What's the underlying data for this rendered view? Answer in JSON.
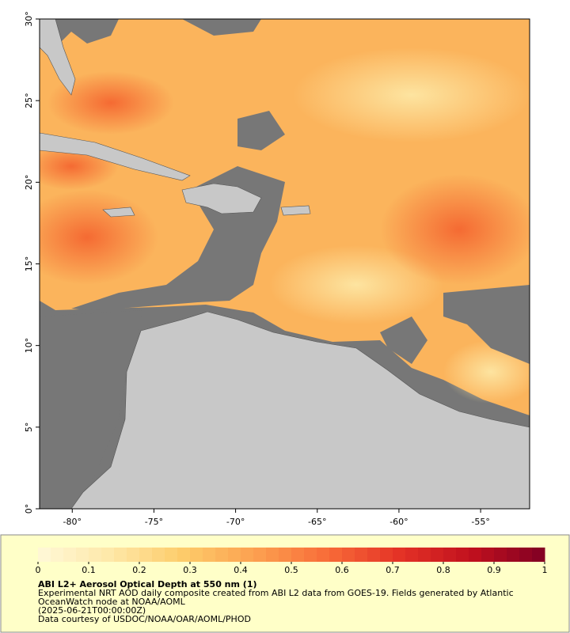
{
  "map": {
    "lat_range": [
      0,
      30
    ],
    "lon_range": [
      -82,
      -52
    ],
    "lat_ticks": [
      {
        "value": 0,
        "label": "0°"
      },
      {
        "value": 5,
        "label": "5°"
      },
      {
        "value": 10,
        "label": "10°"
      },
      {
        "value": 15,
        "label": "15°"
      },
      {
        "value": 20,
        "label": "20°"
      },
      {
        "value": 25,
        "label": "25°"
      },
      {
        "value": 30,
        "label": "30°"
      }
    ],
    "lon_ticks": [
      {
        "value": -80,
        "label": "-80°"
      },
      {
        "value": -75,
        "label": "-75°"
      },
      {
        "value": -70,
        "label": "-70°"
      },
      {
        "value": -65,
        "label": "-65°"
      },
      {
        "value": -60,
        "label": "-60°"
      },
      {
        "value": -55,
        "label": "-55°"
      }
    ]
  },
  "colorbar": {
    "range": [
      0,
      1
    ],
    "ticks": [
      0,
      0.1,
      0.2,
      0.3,
      0.4,
      0.5,
      0.6,
      0.7,
      0.8,
      0.9,
      1
    ],
    "colors": [
      "#fff8d8",
      "#fee8a8",
      "#fdcc6a",
      "#fca050",
      "#f86c38",
      "#e43226",
      "#c0101e",
      "#800024"
    ]
  },
  "caption": {
    "title": "ABI L2+ Aerosol Optical Depth at 550 nm (1)",
    "lines": [
      "Experimental NRT AOD daily composite created from ABI L2 data from GOES-19. Fields generated by Atlantic",
      "OceanWatch node at NOAA/AOML",
      "(2025-06-21T00:00:00Z)",
      "Data courtesy of USDOC/NOAA/OAR/AOML/PHOD"
    ]
  }
}
